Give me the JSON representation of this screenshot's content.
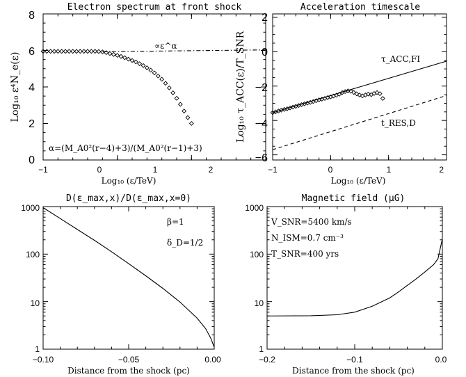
{
  "chart_data": [
    {
      "type": "scatter",
      "title": "Electron spectrum at front shock",
      "xlabel": "Log₁₀ (ε/TeV)",
      "ylabel": "Log₁₀ ε⁴N_e(ε)",
      "xlim": [
        -1,
        2
      ],
      "ylim": [
        0,
        8
      ],
      "x_ticks": [
        "−1",
        "0",
        "1",
        "2"
      ],
      "y_ticks": [
        "0",
        "2",
        "4",
        "6",
        "8"
      ],
      "annotations": [
        "∝ε^α",
        "α=(M_A0²(r−4)+3)/(M_A0²(r−1)+3)"
      ],
      "series": [
        {
          "style": "diamonds",
          "x": [
            -1.0,
            -0.95,
            -0.9,
            -0.85,
            -0.8,
            -0.75,
            -0.7,
            -0.65,
            -0.6,
            -0.55,
            -0.5,
            -0.45,
            -0.4,
            -0.35,
            -0.3,
            -0.25,
            -0.2,
            -0.15,
            -0.1,
            -0.05,
            0.0,
            0.05,
            0.1,
            0.15,
            0.2,
            0.25,
            0.3,
            0.35,
            0.4,
            0.45,
            0.5,
            0.55,
            0.6,
            0.65,
            0.7,
            0.75,
            0.8,
            0.85,
            0.9,
            0.95,
            1.0
          ],
          "y": [
            5.95,
            5.95,
            5.95,
            5.95,
            5.95,
            5.95,
            5.95,
            5.95,
            5.95,
            5.95,
            5.95,
            5.95,
            5.95,
            5.95,
            5.95,
            5.94,
            5.92,
            5.88,
            5.83,
            5.78,
            5.73,
            5.67,
            5.6,
            5.52,
            5.45,
            5.37,
            5.27,
            5.17,
            5.05,
            4.92,
            4.77,
            4.6,
            4.42,
            4.2,
            3.95,
            3.68,
            3.38,
            3.05,
            2.68,
            2.32,
            2.0
          ]
        },
        {
          "style": "dash-dot",
          "x": [
            -0.2,
            2.0
          ],
          "y": [
            5.93,
            6.03
          ]
        }
      ]
    },
    {
      "type": "line",
      "title": "Acceleration timescale",
      "xlabel": "Log₁₀ (ε/TeV)",
      "ylabel": "Log₁₀ τ_ACC(ε)/T_SNR",
      "xlim": [
        -1,
        2
      ],
      "ylim": [
        -6.3,
        2.2
      ],
      "x_ticks": [
        "−1",
        "0",
        "1",
        "2"
      ],
      "y_ticks": [
        "−6",
        "−4",
        "−2",
        "0",
        "2"
      ],
      "annotations": [
        "τ_ACC,FI",
        "t_RES,D"
      ],
      "series": [
        {
          "name": "τ_ACC,FI",
          "style": "solid",
          "x": [
            -1,
            2
          ],
          "y": [
            -3.55,
            -0.55
          ]
        },
        {
          "name": "t_RES,D",
          "style": "dashed",
          "x": [
            -1,
            2
          ],
          "y": [
            -5.7,
            -2.55
          ]
        },
        {
          "style": "diamonds",
          "x": [
            -1.0,
            -0.95,
            -0.9,
            -0.85,
            -0.8,
            -0.75,
            -0.7,
            -0.65,
            -0.6,
            -0.55,
            -0.5,
            -0.45,
            -0.4,
            -0.35,
            -0.3,
            -0.25,
            -0.2,
            -0.15,
            -0.1,
            -0.05,
            0.0,
            0.05,
            0.1,
            0.15,
            0.2,
            0.25,
            0.3,
            0.35,
            0.4,
            0.45,
            0.5,
            0.55,
            0.6,
            0.65,
            0.7,
            0.75,
            0.8,
            0.85,
            0.9
          ],
          "y": [
            -3.55,
            -3.5,
            -3.45,
            -3.4,
            -3.36,
            -3.32,
            -3.27,
            -3.22,
            -3.18,
            -3.13,
            -3.08,
            -3.03,
            -2.99,
            -2.95,
            -2.9,
            -2.85,
            -2.8,
            -2.76,
            -2.72,
            -2.67,
            -2.63,
            -2.58,
            -2.53,
            -2.47,
            -2.38,
            -2.32,
            -2.28,
            -2.3,
            -2.37,
            -2.45,
            -2.52,
            -2.57,
            -2.52,
            -2.46,
            -2.5,
            -2.43,
            -2.38,
            -2.44,
            -2.72
          ]
        }
      ]
    },
    {
      "type": "line",
      "title": "D(ε_max,x)/D(ε_max,x=0)",
      "xlabel": "Distance from the shock (pc)",
      "ylabel": "",
      "xlim": [
        -0.1,
        0.0
      ],
      "ylim": [
        1,
        1000
      ],
      "yscale": "log",
      "x_ticks": [
        "−0.10",
        "−0.05",
        "0.00"
      ],
      "y_ticks": [
        "1",
        "10",
        "100",
        "1000"
      ],
      "annotations": [
        "β=1",
        "δ_D=1/2"
      ],
      "series": [
        {
          "style": "solid",
          "x": [
            -0.1,
            -0.09,
            -0.08,
            -0.07,
            -0.06,
            -0.05,
            -0.04,
            -0.03,
            -0.02,
            -0.01,
            -0.005,
            -0.002,
            0.0
          ],
          "y": [
            950,
            560,
            330,
            195,
            112,
            63,
            35,
            19,
            9.8,
            4.5,
            2.7,
            1.7,
            1.1
          ]
        }
      ]
    },
    {
      "type": "line",
      "title": "Magnetic field (μG)",
      "xlabel": "Distance from the shock (pc)",
      "ylabel": "",
      "xlim": [
        -0.2,
        0.0
      ],
      "ylim": [
        1,
        1000
      ],
      "yscale": "log",
      "x_ticks": [
        "−0.2",
        "−0.1",
        "0.0"
      ],
      "y_ticks": [
        "1",
        "10",
        "100",
        "1000"
      ],
      "annotations": [
        "V_SNR=5400 km/s",
        "N_ISM=0.7 cm⁻³",
        "T_SNR=400 yrs"
      ],
      "series": [
        {
          "style": "solid",
          "x": [
            -0.2,
            -0.15,
            -0.12,
            -0.1,
            -0.08,
            -0.06,
            -0.05,
            -0.04,
            -0.03,
            -0.02,
            -0.01,
            -0.005,
            0.0
          ],
          "y": [
            5.0,
            5.05,
            5.3,
            6.0,
            8.0,
            12.0,
            16.0,
            22.0,
            30.0,
            42.0,
            60.0,
            80.0,
            210.0
          ]
        }
      ]
    }
  ]
}
